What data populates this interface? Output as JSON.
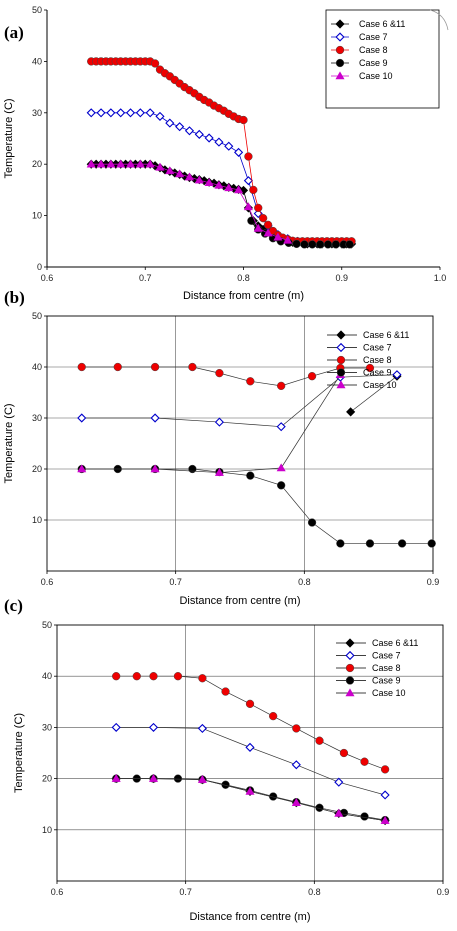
{
  "chart_data": [
    {
      "type": "line",
      "panel_label": "(a)",
      "xlabel": "Distance from centre (m)",
      "ylabel": "Temperature (C)",
      "xlim": [
        0.6,
        1.0
      ],
      "ylim": [
        0,
        50
      ],
      "xticks": [
        "0.6",
        "0.7",
        "0.8",
        "0.9",
        "1.0"
      ],
      "yticks": [
        "0",
        "10",
        "20",
        "30",
        "40",
        "50"
      ],
      "grid": false,
      "legend_position": "top-right",
      "series": [
        {
          "name": "Case 6 &11",
          "marker": "diamond",
          "color": "#000000",
          "x": [
            0.645,
            0.65,
            0.655,
            0.66,
            0.665,
            0.67,
            0.675,
            0.68,
            0.685,
            0.69,
            0.695,
            0.7,
            0.705,
            0.71,
            0.715,
            0.72,
            0.725,
            0.73,
            0.735,
            0.74,
            0.745,
            0.75,
            0.755,
            0.76,
            0.765,
            0.77,
            0.775,
            0.78,
            0.785,
            0.79,
            0.795,
            0.8,
            0.805,
            0.81,
            0.815,
            0.82,
            0.825,
            0.83,
            0.835,
            0.84,
            0.845,
            0.85,
            0.855,
            0.86,
            0.865,
            0.87,
            0.875,
            0.88,
            0.885,
            0.89,
            0.895,
            0.9,
            0.905,
            0.91
          ],
          "y": [
            20,
            20,
            20,
            20,
            20,
            20,
            20,
            20,
            20,
            20,
            20,
            20,
            20,
            19.7,
            19.3,
            18.9,
            18.6,
            18.3,
            18.0,
            17.7,
            17.4,
            17.2,
            17.0,
            16.8,
            16.5,
            16.3,
            16.0,
            15.8,
            15.5,
            15.3,
            15.1,
            14.9,
            11.5,
            9,
            8,
            7.3,
            6.8,
            6.2,
            5.6,
            5.2,
            5,
            4.8,
            4.7,
            4.6,
            4.5,
            4.5,
            4.5,
            4.5,
            4.5,
            4.5,
            4.5,
            4.5,
            4.5,
            4.5
          ]
        },
        {
          "name": "Case 7",
          "marker": "diamond-open",
          "color": "#0000cc",
          "x": [
            0.645,
            0.655,
            0.665,
            0.675,
            0.685,
            0.695,
            0.705,
            0.715,
            0.725,
            0.735,
            0.745,
            0.755,
            0.765,
            0.775,
            0.785,
            0.795,
            0.805,
            0.815,
            0.825,
            0.835,
            0.845,
            0.855,
            0.865,
            0.875,
            0.885,
            0.895,
            0.905
          ],
          "y": [
            30,
            30,
            30,
            30,
            30,
            30,
            30,
            29.3,
            28,
            27.3,
            26.5,
            25.8,
            25.1,
            24.3,
            23.5,
            22.3,
            16.8,
            10.4,
            8,
            6.3,
            5.5,
            5,
            4.8,
            4.8,
            4.8,
            4.8,
            4.8
          ]
        },
        {
          "name": "Case 8",
          "marker": "circle",
          "color": "#ee0000",
          "x": [
            0.645,
            0.65,
            0.655,
            0.66,
            0.665,
            0.67,
            0.675,
            0.68,
            0.685,
            0.69,
            0.695,
            0.7,
            0.705,
            0.71,
            0.715,
            0.72,
            0.725,
            0.73,
            0.735,
            0.74,
            0.745,
            0.75,
            0.755,
            0.76,
            0.765,
            0.77,
            0.775,
            0.78,
            0.785,
            0.79,
            0.795,
            0.8,
            0.805,
            0.81,
            0.815,
            0.82,
            0.825,
            0.83,
            0.835,
            0.84,
            0.845,
            0.85,
            0.855,
            0.86,
            0.865,
            0.87,
            0.875,
            0.88,
            0.885,
            0.89,
            0.895,
            0.9,
            0.905,
            0.91
          ],
          "y": [
            40,
            40,
            40,
            40,
            40,
            40,
            40,
            40,
            40,
            40,
            40,
            40,
            40,
            39.6,
            38.4,
            37.7,
            37.1,
            36.4,
            35.7,
            35.0,
            34.4,
            33.8,
            33.1,
            32.5,
            32.0,
            31.4,
            30.9,
            30.4,
            29.8,
            29.3,
            28.8,
            28.6,
            21.5,
            15,
            11.5,
            9.5,
            8.2,
            7,
            6.2,
            5.7,
            5.4,
            5.1,
            5,
            5,
            5,
            5,
            5,
            5,
            5,
            5,
            5,
            5,
            5,
            5
          ]
        },
        {
          "name": "Case 9",
          "marker": "circle",
          "color": "#000000",
          "x": [
            0.808,
            0.815,
            0.822,
            0.83,
            0.838,
            0.846,
            0.854,
            0.862,
            0.87,
            0.878,
            0.886,
            0.894,
            0.902,
            0.908
          ],
          "y": [
            9,
            7.3,
            6.5,
            5.6,
            5,
            4.7,
            4.5,
            4.4,
            4.4,
            4.4,
            4.4,
            4.4,
            4.4,
            4.4
          ]
        },
        {
          "name": "Case 10",
          "marker": "triangle",
          "color": "#cc00cc",
          "x": [
            0.645,
            0.655,
            0.665,
            0.675,
            0.685,
            0.695,
            0.705,
            0.715,
            0.725,
            0.735,
            0.745,
            0.755,
            0.765,
            0.775,
            0.785,
            0.795,
            0.805,
            0.815,
            0.825,
            0.835,
            0.845
          ],
          "y": [
            20,
            20,
            20,
            20,
            20,
            20,
            20,
            19.4,
            18.7,
            18.1,
            17.5,
            16.9,
            16.4,
            15.9,
            15.4,
            15.0,
            11.7,
            7.5,
            6.6,
            5.8,
            5.2
          ]
        }
      ]
    },
    {
      "type": "line",
      "panel_label": "(b)",
      "xlabel": "Distance from centre (m)",
      "ylabel": "Temperature (C)",
      "xlim": [
        0.6,
        0.9
      ],
      "ylim": [
        0,
        50
      ],
      "xticks": [
        "0.6",
        "0.7",
        "0.8",
        "0.9"
      ],
      "yticks": [
        "10",
        "20",
        "30",
        "40",
        "50"
      ],
      "grid": true,
      "legend_position": "top-right",
      "series": [
        {
          "name": "Case 6 &11",
          "marker": "diamond",
          "color": "#000000",
          "x": [
            0.836,
            0.872
          ],
          "y": [
            31.2,
            38.2
          ]
        },
        {
          "name": "Case 7",
          "marker": "diamond-open",
          "color": "#0000cc",
          "x": [
            0.627,
            0.684,
            0.734,
            0.782,
            0.828,
            0.872
          ],
          "y": [
            30,
            30,
            29.2,
            28.3,
            38,
            38.5
          ]
        },
        {
          "name": "Case 8",
          "marker": "circle",
          "color": "#ee0000",
          "x": [
            0.627,
            0.655,
            0.684,
            0.713,
            0.734,
            0.758,
            0.782,
            0.806,
            0.828,
            0.851
          ],
          "y": [
            40,
            40,
            40,
            40,
            38.8,
            37.2,
            36.3,
            38.2,
            39.8,
            39.8
          ]
        },
        {
          "name": "Case 9",
          "marker": "circle",
          "color": "#000000",
          "x": [
            0.627,
            0.655,
            0.684,
            0.713,
            0.734,
            0.758,
            0.782,
            0.806,
            0.828,
            0.851,
            0.876,
            0.899
          ],
          "y": [
            20,
            20,
            20,
            20,
            19.4,
            18.7,
            16.8,
            9.5,
            5.4,
            5.4,
            5.4,
            5.4
          ]
        },
        {
          "name": "Case 10",
          "marker": "triangle",
          "color": "#cc00cc",
          "x": [
            0.627,
            0.684,
            0.734,
            0.782,
            0.828
          ],
          "y": [
            20,
            20,
            19.3,
            20.2,
            38.5
          ]
        }
      ]
    },
    {
      "type": "line",
      "panel_label": "(c)",
      "xlabel": "Distance from centre (m)",
      "ylabel": "Temperature (C)",
      "xlim": [
        0.6,
        0.9
      ],
      "ylim": [
        0,
        50
      ],
      "xticks": [
        "0.6",
        "0.7",
        "0.8",
        "0.9"
      ],
      "yticks": [
        "10",
        "20",
        "30",
        "40",
        "50"
      ],
      "grid": true,
      "legend_position": "top-right",
      "series": [
        {
          "name": "Case 6 &11",
          "marker": "diamond",
          "color": "#000000",
          "x": [
            0.646,
            0.675,
            0.713,
            0.75,
            0.786,
            0.819,
            0.855
          ],
          "y": [
            20,
            20,
            19.8,
            17.5,
            15.3,
            13.2,
            11.8
          ]
        },
        {
          "name": "Case 7",
          "marker": "diamond-open",
          "color": "#0000cc",
          "x": [
            0.646,
            0.675,
            0.713,
            0.75,
            0.786,
            0.819,
            0.855
          ],
          "y": [
            30,
            30,
            29.8,
            26.1,
            22.7,
            19.3,
            16.8
          ]
        },
        {
          "name": "Case 8",
          "marker": "circle",
          "color": "#ee0000",
          "x": [
            0.646,
            0.662,
            0.675,
            0.694,
            0.713,
            0.731,
            0.75,
            0.768,
            0.786,
            0.804,
            0.823,
            0.839,
            0.855
          ],
          "y": [
            40,
            40,
            40,
            40,
            39.6,
            37,
            34.6,
            32.2,
            29.8,
            27.4,
            25,
            23.3,
            21.8
          ]
        },
        {
          "name": "Case 9",
          "marker": "circle",
          "color": "#000000",
          "x": [
            0.646,
            0.662,
            0.675,
            0.694,
            0.713,
            0.731,
            0.75,
            0.768,
            0.786,
            0.804,
            0.823,
            0.839,
            0.855
          ],
          "y": [
            20,
            20,
            20,
            20,
            19.8,
            18.8,
            17.7,
            16.5,
            15.4,
            14.3,
            13.3,
            12.6,
            11.9
          ]
        },
        {
          "name": "Case 10",
          "marker": "triangle",
          "color": "#cc00cc",
          "x": [
            0.646,
            0.675,
            0.713,
            0.75,
            0.786,
            0.819,
            0.855
          ],
          "y": [
            20,
            20,
            19.8,
            17.5,
            15.3,
            13.2,
            11.8
          ]
        }
      ]
    }
  ]
}
